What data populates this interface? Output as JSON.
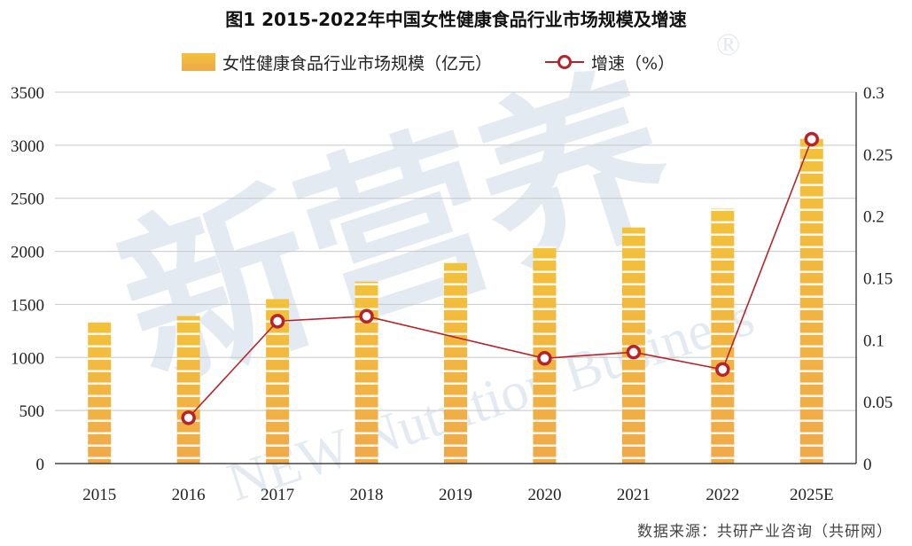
{
  "title": "图1 2015-2022年中国女性健康食品行业市场规模及增速",
  "source": "数据来源：共研产业咨询（共研网）",
  "watermark": {
    "main": "新营养",
    "sub": "NEW Nutrition Business",
    "reg": "®"
  },
  "colors": {
    "bar_top": "#f2c23a",
    "bar_bottom": "#f0a94a",
    "line": "#b8232a",
    "grid": "#c8c8c8",
    "watermark": "#dbe3ee"
  },
  "chart_data": {
    "type": "bar+line",
    "categories": [
      "2015",
      "2016",
      "2017",
      "2018",
      "2019",
      "2020",
      "2021",
      "2022",
      "2025E"
    ],
    "series": [
      {
        "name": "女性健康食品行业市场规模（亿元）",
        "type": "bar",
        "axis": "left",
        "values": [
          1340,
          1390,
          1550,
          1715,
          1890,
          2050,
          2225,
          2405,
          3060
        ]
      },
      {
        "name": "增速（%）",
        "type": "line",
        "axis": "right",
        "values": [
          null,
          0.037,
          0.115,
          0.119,
          null,
          0.085,
          0.09,
          0.076,
          0.262
        ]
      }
    ],
    "left_axis": {
      "min": 0,
      "max": 3500,
      "ticks": [
        "0",
        "500",
        "1000",
        "1500",
        "2000",
        "2500",
        "3000",
        "3500"
      ]
    },
    "right_axis": {
      "min": 0,
      "max": 0.3,
      "ticks": [
        "0",
        "0.05",
        "0.1",
        "0.15",
        "0.2",
        "0.25",
        "0.3"
      ]
    },
    "grid": true,
    "legend_position": "top"
  }
}
